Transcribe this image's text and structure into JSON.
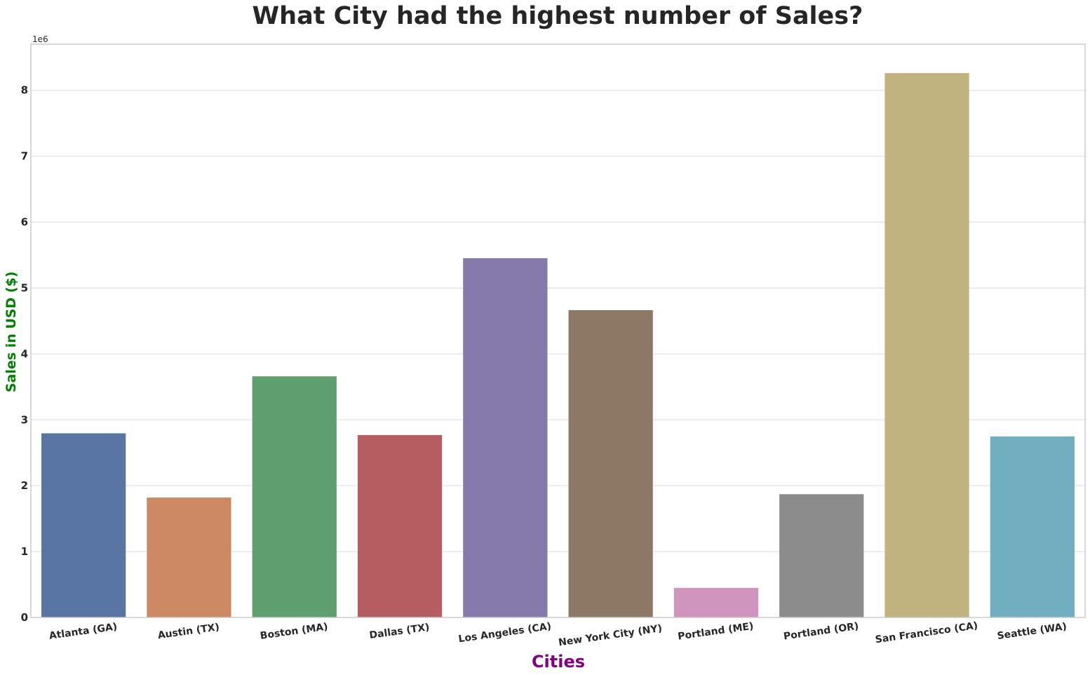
{
  "chart_data": {
    "type": "bar",
    "title": "What City had the highest number of Sales?",
    "xlabel": "Cities",
    "ylabel": "Sales in USD ($)",
    "y_offset_label": "1e6",
    "ylim": [
      0,
      8700000
    ],
    "y_ticks": [
      0,
      1,
      2,
      3,
      4,
      5,
      6,
      7,
      8
    ],
    "grid": true,
    "categories": [
      "Atlanta (GA)",
      "Austin (TX)",
      "Boston (MA)",
      "Dallas (TX)",
      "Los Angeles (CA)",
      "New York City (NY)",
      "Portland (ME)",
      "Portland (OR)",
      "San Francisco (CA)",
      "Seattle (WA)"
    ],
    "values": [
      2795000,
      1820000,
      3660000,
      2768000,
      5452000,
      4664000,
      449000,
      1871000,
      8262000,
      2747000
    ],
    "colors": [
      "#5975a4",
      "#cc8963",
      "#5f9e6e",
      "#b55d60",
      "#857aab",
      "#8d7866",
      "#d095bf",
      "#8c8c8c",
      "#c1b37f",
      "#71aec0"
    ]
  }
}
